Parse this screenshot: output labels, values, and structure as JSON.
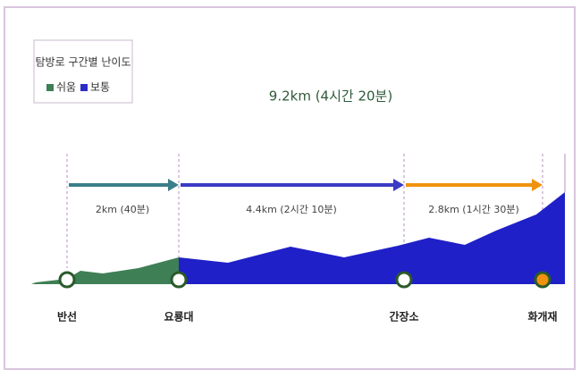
{
  "legend": {
    "title": "탐방로 구간별 난이도",
    "items": [
      "쉬움",
      "보통"
    ]
  },
  "total": "9.2km (4시간 20분)",
  "segments": [
    "2km (40분)",
    "4.4km (2시간 10분)",
    "2.8km (1시간 30분)"
  ],
  "points": [
    "반선",
    "요룡대",
    "간장소",
    "화개재"
  ]
}
